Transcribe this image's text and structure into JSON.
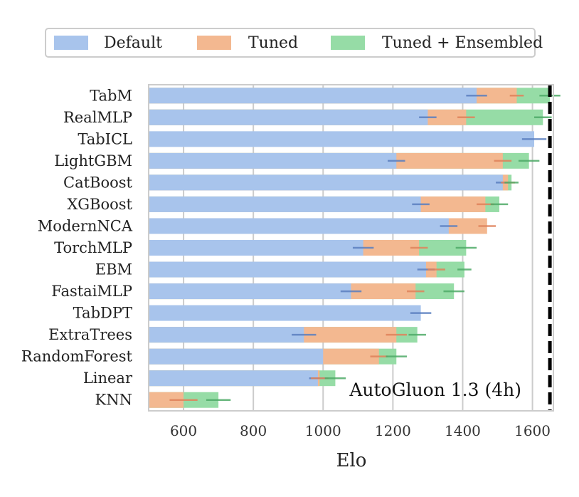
{
  "chart_data": {
    "type": "bar",
    "orientation": "horizontal",
    "title": "",
    "xlabel": "Elo",
    "ylabel": "",
    "xlim": [
      500,
      1660
    ],
    "xticks": [
      600,
      800,
      1000,
      1200,
      1400,
      1600
    ],
    "grid": true,
    "legend": {
      "placement": "top",
      "entries": [
        {
          "name": "Default",
          "color": "#a8c4ec"
        },
        {
          "name": "Tuned",
          "color": "#f3b890"
        },
        {
          "name": "Tuned + Ensembled",
          "color": "#96dca6"
        }
      ]
    },
    "categories": [
      "TabM",
      "RealMLP",
      "TabICL",
      "LightGBM",
      "CatBoost",
      "XGBoost",
      "ModernNCA",
      "TorchMLP",
      "EBM",
      "FastaiMLP",
      "TabDPT",
      "ExtraTrees",
      "RandomForest",
      "Linear",
      "KNN"
    ],
    "series": [
      {
        "name": "Default",
        "color": "#a8c4ec",
        "errcolor": "#5b7fc0",
        "values": [
          1440,
          1300,
          1605,
          1210,
          1515,
          1280,
          1360,
          1115,
          1295,
          1080,
          1280,
          945,
          1000,
          985,
          null
        ],
        "err": [
          30,
          25,
          35,
          25,
          20,
          25,
          25,
          30,
          25,
          30,
          30,
          35,
          null,
          25,
          null
        ]
      },
      {
        "name": "Tuned",
        "color": "#f3b890",
        "errcolor": "#e0825a",
        "values": [
          1555,
          1410,
          null,
          1515,
          1530,
          1465,
          1470,
          1275,
          1325,
          1265,
          null,
          1210,
          1160,
          990,
          600
        ],
        "err": [
          20,
          25,
          null,
          25,
          20,
          25,
          25,
          25,
          25,
          25,
          null,
          30,
          25,
          25,
          40
        ]
      },
      {
        "name": "Tuned + Ensembled",
        "color": "#96dca6",
        "errcolor": "#4fab68",
        "values": [
          1650,
          1630,
          null,
          1590,
          1540,
          1505,
          null,
          1410,
          1405,
          1375,
          null,
          1270,
          1210,
          1035,
          700
        ],
        "err": [
          30,
          25,
          null,
          30,
          20,
          25,
          null,
          30,
          20,
          30,
          null,
          25,
          30,
          30,
          35
        ]
      }
    ],
    "reference_line": {
      "value": 1650,
      "label": "AutoGluon 1.3 (4h)",
      "style": "dashed",
      "color": "#000000"
    }
  }
}
